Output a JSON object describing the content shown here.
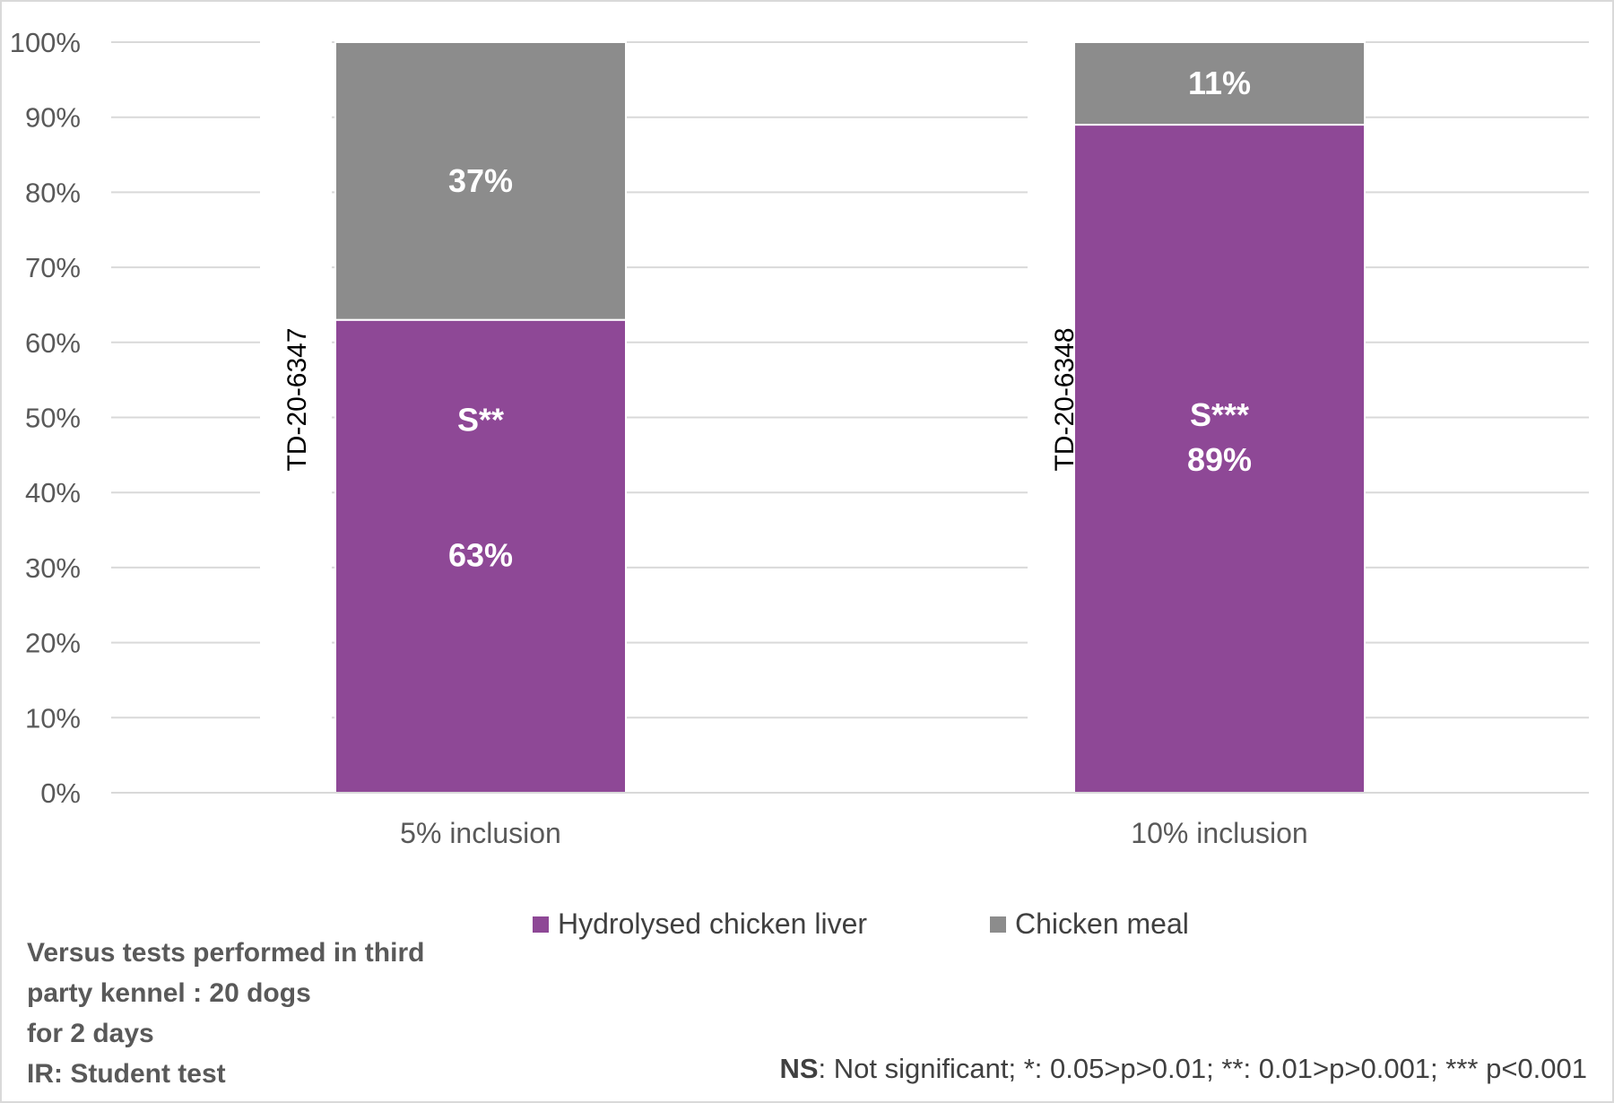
{
  "chart_data": {
    "type": "bar",
    "stacked": true,
    "categories": [
      "5% inclusion",
      "10% inclusion"
    ],
    "series": [
      {
        "name": "Hydrolysed chicken liver",
        "color": "#8e4896",
        "values": [
          63,
          89
        ]
      },
      {
        "name": "Chicken meal",
        "color": "#8c8c8c",
        "values": [
          37,
          11
        ]
      }
    ],
    "data_labels": {
      "Hydrolysed chicken liver": [
        "63%",
        "89%"
      ],
      "Chicken meal": [
        "37%",
        "11%"
      ]
    },
    "significance_labels": [
      "S**",
      "S***"
    ],
    "test_ids": [
      "TD-20-6347",
      "TD-20-6348"
    ],
    "y_ticks": [
      "0%",
      "10%",
      "20%",
      "30%",
      "40%",
      "50%",
      "60%",
      "70%",
      "80%",
      "90%",
      "100%"
    ],
    "ylim": [
      0,
      100
    ],
    "grid": true,
    "legend_position": "bottom"
  },
  "notes": {
    "lines": [
      "Versus tests performed in third",
      "party kennel : 20 dogs",
      "for 2 days",
      "IR: Student test"
    ]
  },
  "footnote": {
    "bold_part": "NS",
    "text": ": Not significant; *: 0.05>p>0.01; **: 0.01>p>0.001; *** p<0.001"
  }
}
